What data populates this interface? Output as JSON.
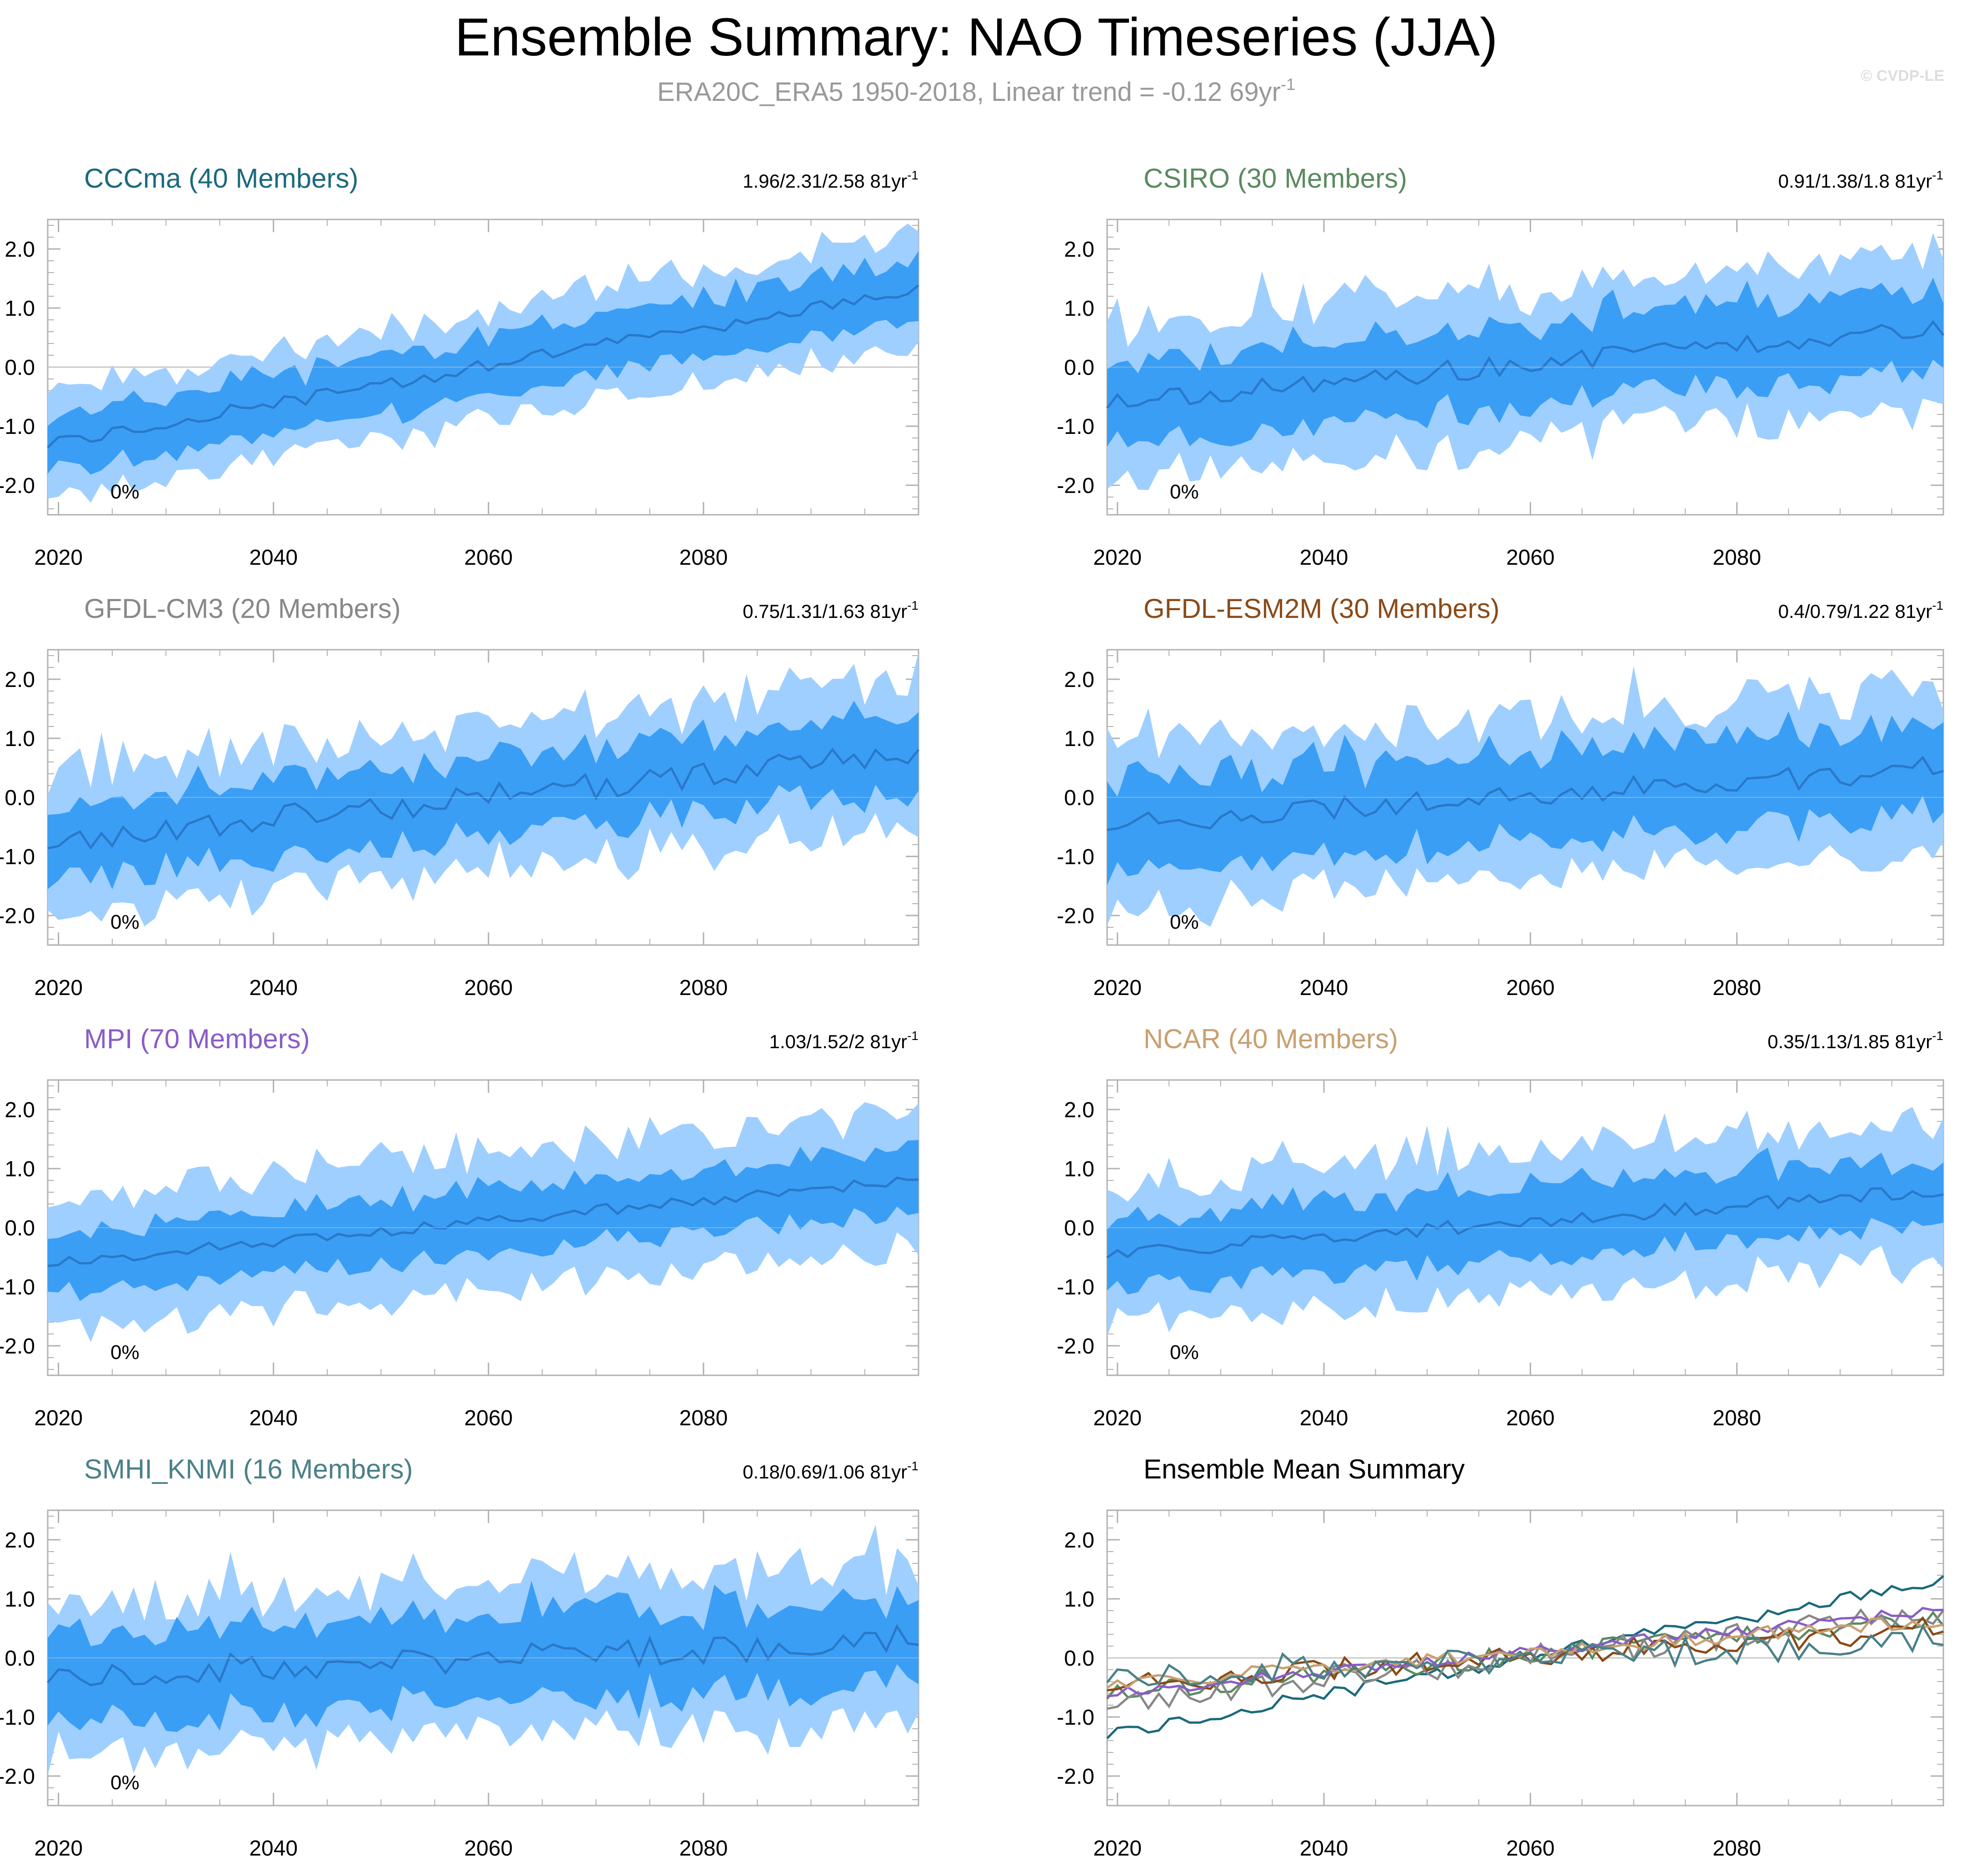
{
  "title": "Ensemble Summary: NAO Timeseries (JJA)",
  "subtitle": {
    "text": "ERA20C_ERA5 1950-2018, Linear trend = -0.12 69yr",
    "sup": "-1"
  },
  "watermark": "© CVDP-LE",
  "colors": {
    "outer_band": "#9fcfff",
    "inner_band": "#3a9ef5",
    "mean_line": "#2a78c8",
    "zero_line": "#c8c8c8",
    "frame": "#b0b0b0"
  },
  "chart_data": [
    {
      "id": "cccma",
      "type": "area",
      "title": "CCCma (40 Members)",
      "title_color": "#1b6a7c",
      "trend_label": "1.96/2.31/2.58 81yr",
      "trend_sup": "-1",
      "percent_label": "0%",
      "x_range": [
        2019,
        2100
      ],
      "ylim": [
        -2.5,
        2.5
      ],
      "xticks": [
        "2020",
        "2040",
        "2060",
        "2080"
      ],
      "yticks": [
        "2.0",
        "1.0",
        "0.0",
        "-1.0",
        "-2.0"
      ],
      "mean_start": -1.3,
      "mean_end": 1.3,
      "inner_half": 0.5,
      "outer_half": 0.9,
      "noise": 0.12,
      "seed": 11
    },
    {
      "id": "csiro",
      "type": "area",
      "title": "CSIRO (30 Members)",
      "title_color": "#5a8a60",
      "trend_label": "0.91/1.38/1.8 81yr",
      "trend_sup": "-1",
      "percent_label": "0%",
      "x_range": [
        2019,
        2100
      ],
      "ylim": [
        -2.5,
        2.5
      ],
      "xticks": [
        "2020",
        "2040",
        "2060",
        "2080"
      ],
      "yticks": [
        "2.0",
        "1.0",
        "0.0",
        "-1.0",
        "-2.0"
      ],
      "mean_start": -0.6,
      "mean_end": 0.7,
      "inner_half": 0.7,
      "outer_half": 1.3,
      "noise": 0.18,
      "seed": 23
    },
    {
      "id": "gfdl-cm3",
      "type": "area",
      "title": "GFDL-CM3 (20 Members)",
      "title_color": "#888888",
      "trend_label": "0.75/1.31/1.63 81yr",
      "trend_sup": "-1",
      "percent_label": "0%",
      "x_range": [
        2019,
        2100
      ],
      "ylim": [
        -2.5,
        2.5
      ],
      "xticks": [
        "2020",
        "2040",
        "2060",
        "2080"
      ],
      "yticks": [
        "2.0",
        "1.0",
        "0.0",
        "-1.0",
        "-2.0"
      ],
      "mean_start": -0.75,
      "mean_end": 0.75,
      "inner_half": 0.65,
      "outer_half": 1.2,
      "noise": 0.22,
      "seed": 37
    },
    {
      "id": "gfdl-esm2m",
      "type": "area",
      "title": "GFDL-ESM2M (30 Members)",
      "title_color": "#8a4a18",
      "trend_label": "0.4/0.79/1.22 81yr",
      "trend_sup": "-1",
      "percent_label": "0%",
      "x_range": [
        2019,
        2100
      ],
      "ylim": [
        -2.5,
        2.5
      ],
      "xticks": [
        "2020",
        "2040",
        "2060",
        "2080"
      ],
      "yticks": [
        "2.0",
        "1.0",
        "0.0",
        "-1.0",
        "-2.0"
      ],
      "mean_start": -0.45,
      "mean_end": 0.5,
      "inner_half": 0.75,
      "outer_half": 1.35,
      "noise": 0.2,
      "seed": 41
    },
    {
      "id": "mpi",
      "type": "area",
      "title": "MPI (70 Members)",
      "title_color": "#8a5cc8",
      "trend_label": "1.03/1.52/2 81yr",
      "trend_sup": "-1",
      "percent_label": "0%",
      "x_range": [
        2019,
        2100
      ],
      "ylim": [
        -2.5,
        2.5
      ],
      "xticks": [
        "2020",
        "2040",
        "2060",
        "2080"
      ],
      "yticks": [
        "2.0",
        "1.0",
        "0.0",
        "-1.0",
        "-2.0"
      ],
      "mean_start": -0.6,
      "mean_end": 0.8,
      "inner_half": 0.55,
      "outer_half": 1.1,
      "noise": 0.1,
      "seed": 53
    },
    {
      "id": "ncar",
      "type": "area",
      "title": "NCAR (40 Members)",
      "title_color": "#c8a070",
      "trend_label": "0.35/1.13/1.85 81yr",
      "trend_sup": "-1",
      "percent_label": "0%",
      "x_range": [
        2019,
        2100
      ],
      "ylim": [
        -2.5,
        2.5
      ],
      "xticks": [
        "2020",
        "2040",
        "2060",
        "2080"
      ],
      "yticks": [
        "2.0",
        "1.0",
        "0.0",
        "-1.0",
        "-2.0"
      ],
      "mean_start": -0.45,
      "mean_end": 0.65,
      "inner_half": 0.6,
      "outer_half": 1.2,
      "noise": 0.12,
      "seed": 67
    },
    {
      "id": "smhi-knmi",
      "type": "area",
      "title": "SMHI_KNMI (16 Members)",
      "title_color": "#4a8088",
      "trend_label": "0.18/0.69/1.06 81yr",
      "trend_sup": "-1",
      "percent_label": "0%",
      "x_range": [
        2019,
        2100
      ],
      "ylim": [
        -2.5,
        2.5
      ],
      "xticks": [
        "2020",
        "2040",
        "2060",
        "2080"
      ],
      "yticks": [
        "2.0",
        "1.0",
        "0.0",
        "-1.0",
        "-2.0"
      ],
      "mean_start": -0.3,
      "mean_end": 0.3,
      "inner_half": 0.75,
      "outer_half": 1.3,
      "noise": 0.25,
      "seed": 79
    },
    {
      "id": "ensemble-mean",
      "type": "line",
      "title": "Ensemble Mean Summary",
      "title_color": "#000000",
      "x_range": [
        2019,
        2100
      ],
      "ylim": [
        -2.5,
        2.5
      ],
      "xticks": [
        "2020",
        "2040",
        "2060",
        "2080"
      ],
      "yticks": [
        "2.0",
        "1.0",
        "0.0",
        "-1.0",
        "-2.0"
      ],
      "series": [
        {
          "name": "CCCma",
          "color": "#1b6a7c",
          "ref": "cccma"
        },
        {
          "name": "CSIRO",
          "color": "#5a8a60",
          "ref": "csiro"
        },
        {
          "name": "GFDL-CM3",
          "color": "#888888",
          "ref": "gfdl-cm3"
        },
        {
          "name": "GFDL-ESM2M",
          "color": "#8a4a18",
          "ref": "gfdl-esm2m"
        },
        {
          "name": "MPI",
          "color": "#8a5cc8",
          "ref": "mpi"
        },
        {
          "name": "NCAR",
          "color": "#c8a070",
          "ref": "ncar"
        },
        {
          "name": "SMHI_KNMI",
          "color": "#4a8088",
          "ref": "smhi-knmi"
        }
      ]
    }
  ]
}
